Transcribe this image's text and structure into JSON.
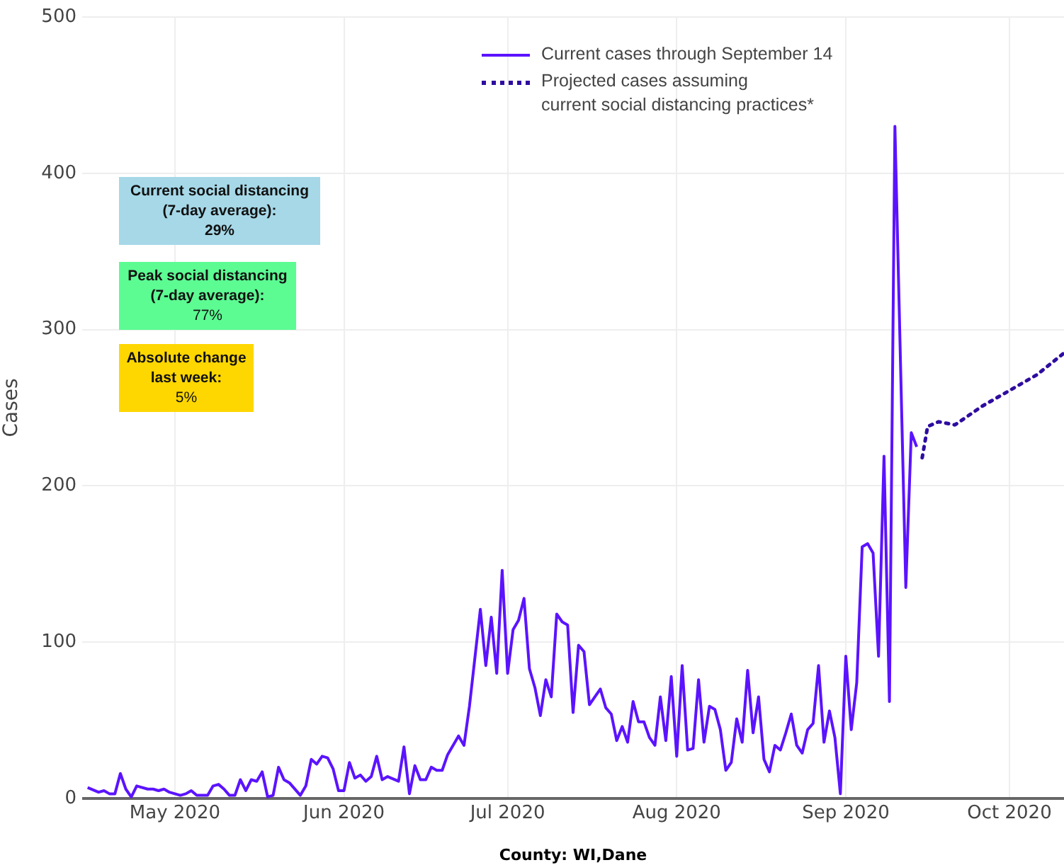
{
  "chart_data": {
    "type": "line",
    "xlabel": "County: WI,Dane",
    "ylabel": "Cases",
    "xlim": [
      "2020-04-14",
      "2020-10-11"
    ],
    "xticks": [
      {
        "value": "2020-05-01",
        "label": "May 2020"
      },
      {
        "value": "2020-06-01",
        "label": "Jun 2020"
      },
      {
        "value": "2020-07-01",
        "label": "Jul 2020"
      },
      {
        "value": "2020-08-01",
        "label": "Aug 2020"
      },
      {
        "value": "2020-09-01",
        "label": "Sep 2020"
      },
      {
        "value": "2020-10-01",
        "label": "Oct 2020"
      }
    ],
    "ylim": [
      0,
      500
    ],
    "yticks": [
      0,
      100,
      200,
      300,
      400,
      500
    ],
    "grid": true,
    "legend": "top",
    "marker": "none",
    "annotations": [
      "Current social distancing\n(7-day average):\n29%",
      "Peak social distancing\n(7-day average):\n77%",
      "Absolute change\nlast week:\n5%"
    ],
    "series": [
      {
        "name": "Current cases through September 14",
        "color": "#5b13ff",
        "line_style": "solid",
        "x": [
          "2020-04-15",
          "2020-04-17",
          "2020-04-18",
          "2020-04-19",
          "2020-04-20",
          "2020-04-21",
          "2020-04-22",
          "2020-04-23",
          "2020-04-24",
          "2020-04-26",
          "2020-04-27",
          "2020-04-28",
          "2020-04-29",
          "2020-04-30",
          "2020-05-02",
          "2020-05-03",
          "2020-05-04",
          "2020-05-05",
          "2020-05-07",
          "2020-05-08",
          "2020-05-09",
          "2020-05-10",
          "2020-05-11",
          "2020-05-12",
          "2020-05-13",
          "2020-05-14",
          "2020-05-15",
          "2020-05-16",
          "2020-05-17",
          "2020-05-18",
          "2020-05-19",
          "2020-05-20",
          "2020-05-21",
          "2020-05-22",
          "2020-05-24",
          "2020-05-25",
          "2020-05-26",
          "2020-05-27",
          "2020-05-28",
          "2020-05-29",
          "2020-05-30",
          "2020-05-31",
          "2020-06-01",
          "2020-06-02",
          "2020-06-03",
          "2020-06-04",
          "2020-06-05",
          "2020-06-06",
          "2020-06-07",
          "2020-06-08",
          "2020-06-09",
          "2020-06-11",
          "2020-06-12",
          "2020-06-13",
          "2020-06-14",
          "2020-06-15",
          "2020-06-16",
          "2020-06-17",
          "2020-06-18",
          "2020-06-19",
          "2020-06-20",
          "2020-06-22",
          "2020-06-23",
          "2020-06-24",
          "2020-06-26",
          "2020-06-27",
          "2020-06-28",
          "2020-06-29",
          "2020-06-30",
          "2020-07-01",
          "2020-07-02",
          "2020-07-03",
          "2020-07-04",
          "2020-07-05",
          "2020-07-06",
          "2020-07-07",
          "2020-07-08",
          "2020-07-09",
          "2020-07-10",
          "2020-07-11",
          "2020-07-12",
          "2020-07-13",
          "2020-07-14",
          "2020-07-15",
          "2020-07-16",
          "2020-07-17",
          "2020-07-18",
          "2020-07-19",
          "2020-07-20",
          "2020-07-21",
          "2020-07-22",
          "2020-07-23",
          "2020-07-24",
          "2020-07-25",
          "2020-07-26",
          "2020-07-27",
          "2020-07-28",
          "2020-07-29",
          "2020-07-30",
          "2020-07-31",
          "2020-08-01",
          "2020-08-02",
          "2020-08-03",
          "2020-08-04",
          "2020-08-05",
          "2020-08-06",
          "2020-08-07",
          "2020-08-08",
          "2020-08-09",
          "2020-08-10",
          "2020-08-11",
          "2020-08-12",
          "2020-08-13",
          "2020-08-14",
          "2020-08-15",
          "2020-08-16",
          "2020-08-17",
          "2020-08-18",
          "2020-08-19",
          "2020-08-20",
          "2020-08-21",
          "2020-08-22",
          "2020-08-23",
          "2020-08-24",
          "2020-08-25",
          "2020-08-26",
          "2020-08-27",
          "2020-08-28",
          "2020-08-29",
          "2020-08-30",
          "2020-08-31",
          "2020-09-01",
          "2020-09-02",
          "2020-09-03",
          "2020-09-04",
          "2020-09-05",
          "2020-09-06",
          "2020-09-07",
          "2020-09-08",
          "2020-09-09",
          "2020-09-10",
          "2020-09-12",
          "2020-09-13",
          "2020-09-14"
        ],
        "values": [
          7,
          4,
          5,
          3,
          3,
          16,
          6,
          1,
          8,
          6,
          6,
          5,
          6,
          4,
          2,
          3,
          5,
          2,
          2,
          8,
          9,
          6,
          2,
          2,
          12,
          5,
          12,
          11,
          17,
          1,
          2,
          20,
          12,
          10,
          2,
          8,
          25,
          22,
          27,
          26,
          19,
          5,
          5,
          23,
          13,
          15,
          11,
          14,
          27,
          12,
          14,
          11,
          33,
          3,
          21,
          12,
          12,
          20,
          18,
          18,
          28,
          40,
          34,
          59,
          121,
          85,
          116,
          80,
          146,
          80,
          108,
          114,
          128,
          83,
          71,
          53,
          76,
          65,
          118,
          113,
          111,
          55,
          98,
          94,
          60,
          65,
          70,
          58,
          54,
          37,
          46,
          36,
          62,
          49,
          49,
          39,
          34,
          65,
          37,
          78,
          27,
          85,
          31,
          32,
          76,
          36,
          59,
          57,
          44,
          18,
          23,
          51,
          36,
          82,
          42,
          65,
          25,
          17,
          34,
          31,
          42,
          54,
          34,
          29,
          44,
          48,
          85,
          36,
          56,
          39,
          3,
          91,
          44,
          74,
          161,
          163,
          157,
          91,
          219,
          62,
          430,
          135,
          234,
          225
        ]
      },
      {
        "name": "Projected cases assuming\ncurrent social distancing practices*",
        "color": "#2e0ca0",
        "line_style": "dotted",
        "x": [
          "2020-09-15",
          "2020-09-16",
          "2020-09-18",
          "2020-09-21",
          "2020-09-26",
          "2020-10-01",
          "2020-10-06",
          "2020-10-11"
        ],
        "values": [
          218,
          238,
          241,
          239,
          251,
          261,
          271,
          285
        ]
      }
    ]
  }
}
